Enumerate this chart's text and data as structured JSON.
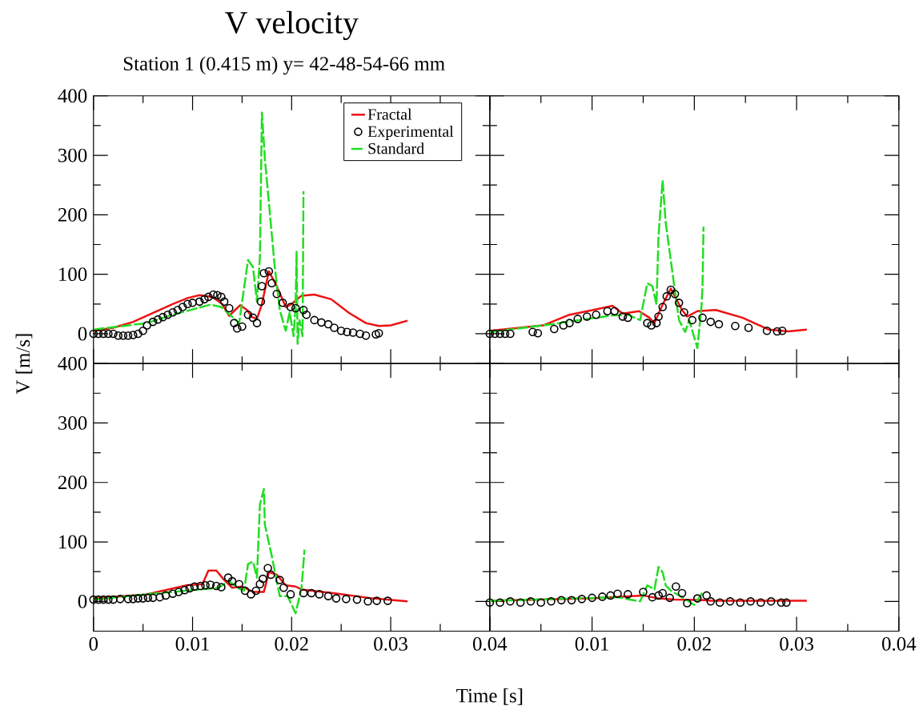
{
  "chart_data": [
    {
      "type": "line",
      "title": "V velocity",
      "subtitle": "Station 1 (0.415 m) y= 42-48-54-66 mm",
      "ylabel": "V [m/s]",
      "xlim": [
        0,
        0.04
      ],
      "ylim": [
        -50,
        400
      ],
      "xticks": [
        0,
        0.01,
        0.02,
        0.03,
        0.04
      ],
      "yticks": [
        0,
        100,
        200,
        300,
        400
      ],
      "tick_labels": "y",
      "legend": "top right",
      "series": [
        {
          "name": "Fractal",
          "color": "#ee1111",
          "line_style": "solid",
          "marker": "none",
          "x": [
            0,
            0.002,
            0.004,
            0.006,
            0.008,
            0.0095,
            0.0107,
            0.012,
            0.013,
            0.0137,
            0.0143,
            0.0148,
            0.0155,
            0.016,
            0.0165,
            0.017,
            0.0177,
            0.0185,
            0.0194,
            0.02,
            0.021,
            0.0223,
            0.024,
            0.0258,
            0.0275,
            0.0288,
            0.03,
            0.0317
          ],
          "values": [
            5,
            10,
            20,
            35,
            50,
            60,
            65,
            62,
            50,
            30,
            40,
            48,
            40,
            28,
            25,
            50,
            105,
            80,
            45,
            50,
            64,
            66,
            58,
            35,
            18,
            13,
            14,
            22
          ]
        },
        {
          "name": "Experimental",
          "type": "scatter",
          "color": "#000000",
          "marker": "circle",
          "x": [
            0,
            0.0005,
            0.001,
            0.0015,
            0.002,
            0.0025,
            0.003,
            0.0035,
            0.004,
            0.0045,
            0.005,
            0.0054,
            0.006,
            0.0065,
            0.007,
            0.0075,
            0.008,
            0.0085,
            0.009,
            0.0095,
            0.01,
            0.0107,
            0.0112,
            0.0116,
            0.0121,
            0.0125,
            0.0129,
            0.0132,
            0.0137,
            0.0142,
            0.0145,
            0.015,
            0.0156,
            0.0161,
            0.0165,
            0.0169,
            0.017,
            0.0172,
            0.0177,
            0.018,
            0.0185,
            0.0191,
            0.0199,
            0.0204,
            0.0212,
            0.0215,
            0.0223,
            0.023,
            0.0237,
            0.0243,
            0.025,
            0.0256,
            0.0262,
            0.0269,
            0.0275,
            0.0285,
            0.0288
          ],
          "values": [
            0,
            0,
            0,
            0,
            0,
            -3,
            -3,
            -3,
            -2,
            0,
            5,
            14,
            20,
            24,
            28,
            32,
            36,
            40,
            45,
            50,
            52,
            54,
            58,
            62,
            66,
            65,
            62,
            54,
            43,
            18,
            9,
            12,
            32,
            27,
            18,
            54,
            80,
            102,
            105,
            85,
            67,
            52,
            45,
            43,
            40,
            32,
            23,
            19,
            16,
            10,
            5,
            3,
            2,
            0,
            -3,
            -1,
            1
          ]
        },
        {
          "name": "Standard",
          "color": "#22dd22",
          "line_style": "dashed",
          "marker": "none",
          "x": [
            0,
            0.0054,
            0.008,
            0.0118,
            0.0129,
            0.0147,
            0.0156,
            0.0161,
            0.0165,
            0.0168,
            0.017,
            0.0173,
            0.0183,
            0.0188,
            0.0194,
            0.0198,
            0.0202,
            0.0204,
            0.0205,
            0.0206,
            0.0208,
            0.0211,
            0.0212
          ],
          "values": [
            7,
            18,
            32,
            49,
            45,
            18,
            124,
            112,
            54,
            129,
            372,
            294,
            112,
            40,
            5,
            36,
            -4,
            49,
            138,
            -17,
            23,
            -4,
            240
          ]
        }
      ]
    },
    {
      "type": "line",
      "xlim": [
        0,
        0.04
      ],
      "ylim": [
        -50,
        400
      ],
      "xticks": [
        0,
        0.01,
        0.02,
        0.03,
        0.04
      ],
      "yticks": [
        0,
        100,
        200,
        300,
        400
      ],
      "tick_labels": false,
      "series": [
        {
          "type": "line",
          "color": "#ee1111",
          "line_style": "solid",
          "marker": "none",
          "x": [
            0,
            0.0052,
            0.0078,
            0.0104,
            0.012,
            0.013,
            0.0146,
            0.0156,
            0.0161,
            0.0169,
            0.0177,
            0.0188,
            0.0193,
            0.0203,
            0.0221,
            0.0247,
            0.0273,
            0.0292,
            0.031
          ],
          "values": [
            5,
            14,
            32,
            41,
            47,
            34,
            38,
            27,
            18,
            49,
            76,
            40,
            29,
            38,
            40,
            27,
            7,
            4,
            7
          ]
        },
        {
          "type": "scatter",
          "color": "#000000",
          "marker": "circle",
          "x": [
            0,
            0.0005,
            0.001,
            0.0015,
            0.002,
            0.0042,
            0.0047,
            0.0063,
            0.0072,
            0.0078,
            0.0086,
            0.0095,
            0.0104,
            0.0115,
            0.0122,
            0.013,
            0.0135,
            0.0154,
            0.0158,
            0.0163,
            0.0165,
            0.0169,
            0.0173,
            0.0177,
            0.0181,
            0.0185,
            0.019,
            0.0198,
            0.0208,
            0.0216,
            0.0224,
            0.024,
            0.0253,
            0.0271,
            0.0281,
            0.0286
          ],
          "values": [
            0,
            0,
            0,
            0,
            0,
            3,
            1,
            8,
            14,
            18,
            25,
            29,
            32,
            38,
            38,
            29,
            27,
            18,
            14,
            18,
            29,
            45,
            63,
            74,
            67,
            52,
            36,
            23,
            27,
            20,
            16,
            13,
            10,
            5,
            4,
            5
          ]
        },
        {
          "type": "line",
          "color": "#22dd22",
          "line_style": "dashed",
          "marker": "none",
          "x": [
            0,
            0.0052,
            0.0104,
            0.012,
            0.0135,
            0.0147,
            0.0154,
            0.0159,
            0.0163,
            0.0165,
            0.0169,
            0.0172,
            0.018,
            0.0185,
            0.0191,
            0.0195,
            0.0203,
            0.0207,
            0.0208,
            0.0209
          ],
          "values": [
            3,
            14,
            27,
            31,
            32,
            23,
            85,
            80,
            49,
            165,
            258,
            187,
            85,
            23,
            3,
            23,
            -24,
            45,
            80,
            180
          ]
        }
      ]
    },
    {
      "type": "line",
      "xlabel": "Time [s]",
      "xlim": [
        0,
        0.04
      ],
      "ylim": [
        -50,
        400
      ],
      "xticks": [
        0,
        0.01,
        0.02,
        0.03,
        0.04
      ],
      "yticks": [
        0,
        100,
        200,
        300,
        400
      ],
      "series": [
        {
          "type": "line",
          "color": "#ee1111",
          "line_style": "solid",
          "marker": "none",
          "x": [
            0,
            0.0054,
            0.0094,
            0.011,
            0.0116,
            0.0124,
            0.0132,
            0.014,
            0.015,
            0.0161,
            0.0172,
            0.0177,
            0.0185,
            0.0194,
            0.0204,
            0.021,
            0.0242,
            0.0282,
            0.0317
          ],
          "values": [
            5,
            12,
            27,
            29,
            52,
            52,
            36,
            23,
            25,
            16,
            16,
            49,
            45,
            27,
            25,
            20,
            14,
            5,
            0
          ]
        },
        {
          "type": "scatter",
          "color": "#000000",
          "marker": "circle",
          "x": [
            0,
            0.0005,
            0.001,
            0.0015,
            0.002,
            0.0027,
            0.0035,
            0.004,
            0.0045,
            0.005,
            0.0055,
            0.006,
            0.0067,
            0.0073,
            0.008,
            0.0086,
            0.0092,
            0.0097,
            0.0102,
            0.0108,
            0.0113,
            0.0118,
            0.0124,
            0.0129,
            0.0136,
            0.014,
            0.0147,
            0.0153,
            0.0159,
            0.0164,
            0.0168,
            0.0171,
            0.0176,
            0.0179,
            0.0188,
            0.0192,
            0.0199,
            0.0212,
            0.022,
            0.0228,
            0.0237,
            0.0245,
            0.0255,
            0.0266,
            0.0277,
            0.0286,
            0.0297
          ],
          "values": [
            3,
            3,
            3,
            3,
            3,
            4,
            4,
            4,
            5,
            5,
            6,
            6,
            7,
            10,
            13,
            16,
            19,
            22,
            25,
            26,
            27,
            28,
            26,
            24,
            40,
            34,
            29,
            18,
            12,
            18,
            29,
            38,
            56,
            45,
            36,
            23,
            12,
            14,
            14,
            12,
            9,
            5,
            4,
            3,
            0,
            1,
            1
          ]
        },
        {
          "type": "line",
          "color": "#22dd22",
          "line_style": "dashed",
          "marker": "none",
          "x": [
            0,
            0.0054,
            0.0108,
            0.0126,
            0.0137,
            0.0145,
            0.0152,
            0.0156,
            0.0161,
            0.0165,
            0.0168,
            0.0172,
            0.0173,
            0.018,
            0.0188,
            0.0196,
            0.0204,
            0.021,
            0.0213
          ],
          "values": [
            3,
            12,
            20,
            23,
            34,
            23,
            18,
            63,
            67,
            40,
            163,
            189,
            129,
            76,
            9,
            9,
            -20,
            23,
            87
          ]
        }
      ]
    },
    {
      "type": "line",
      "xlim": [
        0,
        0.04
      ],
      "ylim": [
        -50,
        400
      ],
      "xticks": [
        {
          "value": 0,
          "label": null
        },
        0.01,
        0.02,
        0.03,
        0.04
      ],
      "yticks": [
        0,
        100,
        200,
        300,
        400
      ],
      "tick_labels": "x",
      "series": [
        {
          "type": "line",
          "color": "#ee1111",
          "line_style": "solid",
          "marker": "none",
          "x": [
            0,
            0.01,
            0.0128,
            0.015,
            0.0165,
            0.018,
            0.021,
            0.0216,
            0.031
          ],
          "values": [
            1,
            5,
            8,
            10,
            5,
            3,
            2,
            1,
            1
          ]
        },
        {
          "type": "scatter",
          "color": "#000000",
          "marker": "circle",
          "x": [
            0,
            0.001,
            0.002,
            0.003,
            0.004,
            0.005,
            0.006,
            0.007,
            0.008,
            0.009,
            0.01,
            0.011,
            0.0118,
            0.0125,
            0.0135,
            0.015,
            0.0159,
            0.0165,
            0.0169,
            0.0176,
            0.0182,
            0.0188,
            0.0193,
            0.0203,
            0.0212,
            0.0216,
            0.0225,
            0.0235,
            0.0245,
            0.0255,
            0.0265,
            0.0275,
            0.0285,
            0.029
          ],
          "values": [
            -2,
            -2,
            0,
            -2,
            0,
            -2,
            0,
            2,
            2,
            4,
            6,
            8,
            10,
            13,
            12,
            16,
            7,
            10,
            14,
            6,
            25,
            14,
            -3,
            5,
            10,
            0,
            -2,
            0,
            -2,
            0,
            -2,
            0,
            -2,
            -2
          ]
        },
        {
          "type": "line",
          "color": "#22dd22",
          "line_style": "dashed",
          "marker": "none",
          "x": [
            0,
            0.0125,
            0.0147,
            0.0154,
            0.0161,
            0.0165,
            0.0169,
            0.0172,
            0.0177,
            0.0188,
            0.02,
            0.0208
          ],
          "values": [
            1,
            7,
            0,
            27,
            20,
            58,
            49,
            27,
            18,
            7,
            -6,
            15
          ]
        }
      ]
    }
  ]
}
